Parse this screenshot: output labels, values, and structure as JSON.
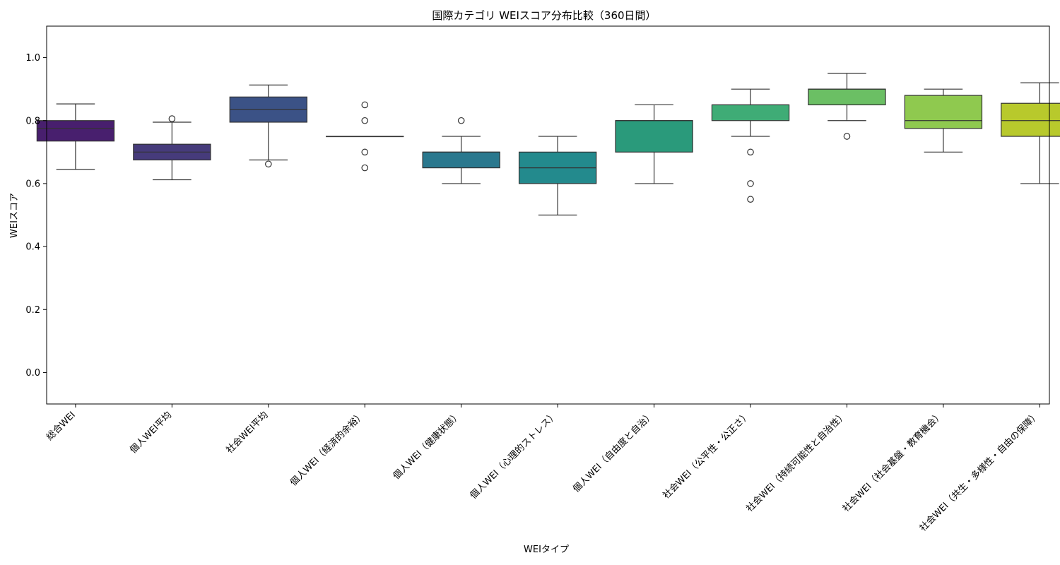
{
  "chart_data": {
    "type": "box",
    "title": "国際カテゴリ WEIスコア分布比較（360日間）",
    "xlabel": "WEIタイプ",
    "ylabel": "WEIスコア",
    "ylim": [
      -0.1,
      1.1
    ],
    "yticks": [
      "0.0",
      "0.2",
      "0.4",
      "0.6",
      "0.8",
      "1.0"
    ],
    "grid": false,
    "categories": [
      "総合WEI",
      "個人WEI平均",
      "社会WEI平均",
      "個人WEI（経済的余裕）",
      "個人WEI（健康状態）",
      "個人WEI（心理的ストレス）",
      "個人WEI（自由度と自治）",
      "社会WEI（公平性・公正さ）",
      "社会WEI（持続可能性と自治性）",
      "社会WEI（社会基盤・教育機会）",
      "社会WEI（共生・多様性・自由の保障）"
    ],
    "boxes": [
      {
        "whisker_low": 0.645,
        "q1": 0.735,
        "median": 0.775,
        "q3": 0.8,
        "whisker_high": 0.853,
        "outliers": [],
        "color": "#481f6e"
      },
      {
        "whisker_low": 0.612,
        "q1": 0.675,
        "median": 0.7,
        "q3": 0.725,
        "whisker_high": 0.795,
        "outliers": [
          0.806
        ],
        "color": "#463b7b"
      },
      {
        "whisker_low": 0.675,
        "q1": 0.795,
        "median": 0.835,
        "q3": 0.875,
        "whisker_high": 0.913,
        "outliers": [
          0.662
        ],
        "color": "#3b5286"
      },
      {
        "whisker_low": 0.75,
        "q1": 0.75,
        "median": 0.75,
        "q3": 0.75,
        "whisker_high": 0.75,
        "outliers": [
          0.85,
          0.8,
          0.7,
          0.65
        ],
        "color": "#31668d"
      },
      {
        "whisker_low": 0.6,
        "q1": 0.65,
        "median": 0.7,
        "q3": 0.7,
        "whisker_high": 0.75,
        "outliers": [
          0.8
        ],
        "color": "#2a788e"
      },
      {
        "whisker_low": 0.5,
        "q1": 0.6,
        "median": 0.65,
        "q3": 0.7,
        "whisker_high": 0.75,
        "outliers": [],
        "color": "#238a8d"
      },
      {
        "whisker_low": 0.6,
        "q1": 0.7,
        "median": 0.8,
        "q3": 0.8,
        "whisker_high": 0.85,
        "outliers": [],
        "color": "#2a9a7b"
      },
      {
        "whisker_low": 0.75,
        "q1": 0.8,
        "median": 0.85,
        "q3": 0.85,
        "whisker_high": 0.9,
        "outliers": [
          0.7,
          0.6,
          0.55
        ],
        "color": "#3fac76"
      },
      {
        "whisker_low": 0.8,
        "q1": 0.85,
        "median": 0.9,
        "q3": 0.9,
        "whisker_high": 0.95,
        "outliers": [
          0.75
        ],
        "color": "#6bbf64"
      },
      {
        "whisker_low": 0.7,
        "q1": 0.775,
        "median": 0.8,
        "q3": 0.88,
        "whisker_high": 0.9,
        "outliers": [],
        "color": "#8fc94f"
      },
      {
        "whisker_low": 0.6,
        "q1": 0.75,
        "median": 0.8,
        "q3": 0.855,
        "whisker_high": 0.92,
        "outliers": [],
        "color": "#b8c92c"
      }
    ]
  }
}
